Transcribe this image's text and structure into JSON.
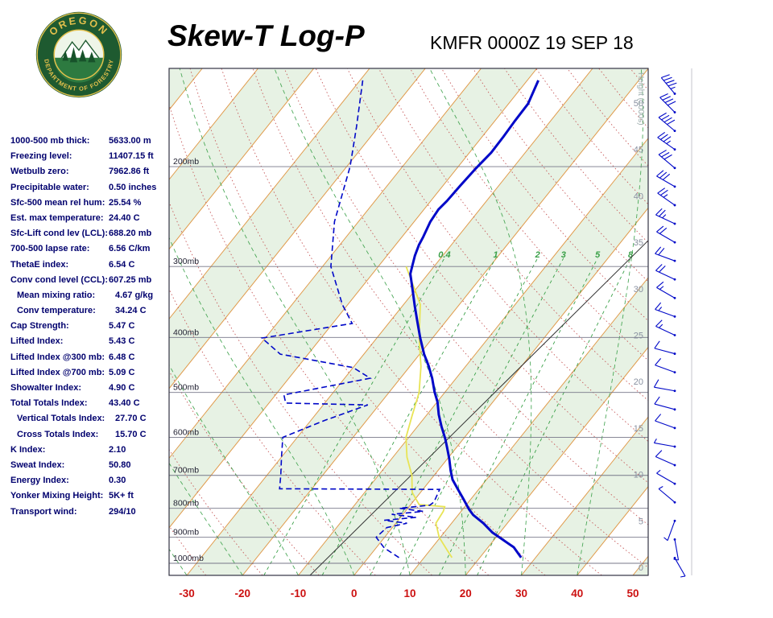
{
  "header": {
    "title": "Skew-T Log-P",
    "station": "KMFR 0000Z 19 SEP 18",
    "logo_top": "OREGON",
    "logo_bottom": "DEPARTMENT OF FORESTRY"
  },
  "indices": [
    {
      "label": "1000-500 mb thick:",
      "value": "5633.00 m",
      "indent": false
    },
    {
      "label": "Freezing level:",
      "value": "11407.15 ft",
      "indent": false
    },
    {
      "label": "Wetbulb zero:",
      "value": "7962.86 ft",
      "indent": false
    },
    {
      "label": "Precipitable water:",
      "value": "0.50 inches",
      "indent": false
    },
    {
      "label": "Sfc-500 mean rel hum:",
      "value": "25.54 %",
      "indent": false
    },
    {
      "label": "Est. max temperature:",
      "value": "24.40 C",
      "indent": false
    },
    {
      "label": "Sfc-Lift cond lev (LCL):",
      "value": "688.20 mb",
      "indent": false
    },
    {
      "label": "700-500 lapse rate:",
      "value": "6.56 C/km",
      "indent": false
    },
    {
      "label": "ThetaE index:",
      "value": "6.54 C",
      "indent": false
    },
    {
      "label": "Conv cond level (CCL):",
      "value": "607.25 mb",
      "indent": false
    },
    {
      "label": "Mean mixing ratio:",
      "value": "4.67 g/kg",
      "indent": true
    },
    {
      "label": "Conv temperature:",
      "value": "34.24 C",
      "indent": true
    },
    {
      "label": "Cap Strength:",
      "value": "5.47 C",
      "indent": false
    },
    {
      "label": "Lifted Index:",
      "value": "5.43 C",
      "indent": false
    },
    {
      "label": "Lifted Index @300 mb:",
      "value": "6.48 C",
      "indent": false
    },
    {
      "label": "Lifted Index @700 mb:",
      "value": "5.09 C",
      "indent": false
    },
    {
      "label": "Showalter Index:",
      "value": "4.90 C",
      "indent": false
    },
    {
      "label": "Total Totals Index:",
      "value": "43.40 C",
      "indent": false
    },
    {
      "label": "Vertical Totals Index:",
      "value": "27.70 C",
      "indent": true
    },
    {
      "label": "Cross Totals Index:",
      "value": "15.70 C",
      "indent": true
    },
    {
      "label": "K Index:",
      "value": "2.10",
      "indent": false
    },
    {
      "label": "Sweat Index:",
      "value": "50.80",
      "indent": false
    },
    {
      "label": "Energy Index:",
      "value": "0.30",
      "indent": false
    },
    {
      "label": "Yonker Mixing Height:",
      "value": "5K+ ft",
      "indent": false
    },
    {
      "label": "Transport wind:",
      "value": "294/10",
      "indent": false
    }
  ],
  "chart_data": {
    "type": "skewt-log-p",
    "title": "Skew-T Log-P",
    "station_time": "KMFR 0000Z 19 SEP 18",
    "pressure_levels": {
      "labels": [
        "200mb",
        "300mb",
        "400mb",
        "500mb",
        "600mb",
        "700mb",
        "800mb",
        "900mb",
        "1000mb"
      ],
      "values": [
        200,
        300,
        400,
        500,
        600,
        700,
        800,
        900,
        1000
      ],
      "scale": "log"
    },
    "temp_axis": {
      "ticks": [
        -30,
        -20,
        -10,
        0,
        10,
        20,
        30,
        40,
        50
      ],
      "unit": "C"
    },
    "height_axis": {
      "label": "Height (1000s)",
      "ticks": [
        0,
        5,
        10,
        15,
        20,
        25,
        30,
        35,
        40,
        45,
        50
      ],
      "unit": "1000s ft"
    },
    "mixing_ratio_lines": [
      0.4,
      1,
      2,
      3,
      5,
      8
    ],
    "temperature_profile": [
      [
        977,
        27.4
      ],
      [
        937,
        24.6
      ],
      [
        883,
        18.7
      ],
      [
        850,
        15.7
      ],
      [
        822,
        12.7
      ],
      [
        803,
        11.1
      ],
      [
        770,
        8.6
      ],
      [
        740,
        6.2
      ],
      [
        712,
        3.9
      ],
      [
        687,
        2.3
      ],
      [
        654,
        0.3
      ],
      [
        625,
        -1.7
      ],
      [
        603,
        -3.3
      ],
      [
        574,
        -5.7
      ],
      [
        547,
        -7.9
      ],
      [
        520,
        -9.9
      ],
      [
        499,
        -11.9
      ],
      [
        472,
        -14.3
      ],
      [
        449,
        -16.7
      ],
      [
        428,
        -19.2
      ],
      [
        401,
        -22.2
      ],
      [
        375,
        -25.1
      ],
      [
        352,
        -27.8
      ],
      [
        329,
        -30.6
      ],
      [
        309,
        -33.2
      ],
      [
        299,
        -34.0
      ],
      [
        287,
        -35.0
      ],
      [
        275,
        -35.8
      ],
      [
        266,
        -36.2
      ],
      [
        250,
        -37.1
      ],
      [
        238,
        -37.4
      ],
      [
        230,
        -37.1
      ],
      [
        216,
        -36.9
      ],
      [
        202,
        -36.6
      ],
      [
        189,
        -36.1
      ],
      [
        177,
        -36.2
      ],
      [
        166,
        -36.4
      ],
      [
        155,
        -36.5
      ],
      [
        141,
        -38.0
      ]
    ],
    "dewpoint_profile": [
      [
        977,
        5.5
      ],
      [
        940,
        1.5
      ],
      [
        900,
        -1.5
      ],
      [
        865,
        -1.0
      ],
      [
        850,
        2.0
      ],
      [
        840,
        -2.5
      ],
      [
        830,
        2.8
      ],
      [
        820,
        -2.0
      ],
      [
        810,
        3.2
      ],
      [
        800,
        -1.5
      ],
      [
        790,
        3.5
      ],
      [
        780,
        3.8
      ],
      [
        741,
        3.0
      ],
      [
        739,
        -25.8
      ],
      [
        700,
        -27.5
      ],
      [
        650,
        -30.0
      ],
      [
        600,
        -32.6
      ],
      [
        560,
        -27.5
      ],
      [
        526,
        -22.0
      ],
      [
        522,
        -37.0
      ],
      [
        505,
        -38.5
      ],
      [
        472,
        -25.4
      ],
      [
        452,
        -30.0
      ],
      [
        428,
        -45.0
      ],
      [
        401,
        -50.6
      ],
      [
        378,
        -36.5
      ],
      [
        350,
        -41.0
      ],
      [
        300,
        -48.5
      ],
      [
        250,
        -54.3
      ],
      [
        200,
        -59.4
      ],
      [
        170,
        -64.0
      ],
      [
        141,
        -69.5
      ]
    ],
    "wetbulb_profile": [
      [
        977,
        15.0
      ],
      [
        950,
        13.2
      ],
      [
        900,
        9.8
      ],
      [
        850,
        7.2
      ],
      [
        830,
        7.0
      ],
      [
        810,
        6.8
      ],
      [
        795,
        6.4
      ],
      [
        788,
        1.5
      ],
      [
        750,
        -1.5
      ],
      [
        700,
        -4.0
      ],
      [
        650,
        -7.5
      ],
      [
        600,
        -10.5
      ],
      [
        550,
        -12.5
      ],
      [
        500,
        -14.6
      ],
      [
        450,
        -18.0
      ],
      [
        400,
        -22.5
      ],
      [
        350,
        -27.0
      ],
      [
        300,
        -35.0
      ]
    ],
    "winds": [
      {
        "h": 51,
        "dir": 320,
        "spd": 45
      },
      {
        "h": 49,
        "dir": 315,
        "spd": 40
      },
      {
        "h": 47,
        "dir": 310,
        "spd": 40
      },
      {
        "h": 45,
        "dir": 305,
        "spd": 35
      },
      {
        "h": 43,
        "dir": 310,
        "spd": 30
      },
      {
        "h": 41,
        "dir": 300,
        "spd": 30
      },
      {
        "h": 39,
        "dir": 305,
        "spd": 25
      },
      {
        "h": 37,
        "dir": 295,
        "spd": 25
      },
      {
        "h": 35,
        "dir": 300,
        "spd": 20
      },
      {
        "h": 33,
        "dir": 290,
        "spd": 20
      },
      {
        "h": 31,
        "dir": 295,
        "spd": 20
      },
      {
        "h": 29,
        "dir": 300,
        "spd": 15
      },
      {
        "h": 27,
        "dir": 290,
        "spd": 15
      },
      {
        "h": 25,
        "dir": 295,
        "spd": 15
      },
      {
        "h": 23,
        "dir": 285,
        "spd": 10
      },
      {
        "h": 21,
        "dir": 290,
        "spd": 10
      },
      {
        "h": 19,
        "dir": 280,
        "spd": 10
      },
      {
        "h": 17,
        "dir": 285,
        "spd": 10
      },
      {
        "h": 15,
        "dir": 290,
        "spd": 10
      },
      {
        "h": 13,
        "dir": 280,
        "spd": 5
      },
      {
        "h": 11,
        "dir": 294,
        "spd": 10
      },
      {
        "h": 9,
        "dir": 300,
        "spd": 5
      },
      {
        "h": 7,
        "dir": 310,
        "spd": 5
      },
      {
        "h": 5,
        "dir": 200,
        "spd": 5
      },
      {
        "h": 3,
        "dir": 170,
        "spd": 5
      },
      {
        "h": 1,
        "dir": 150,
        "spd": 5
      }
    ],
    "colors": {
      "band": "#e7f2e4",
      "isotherm": "#e09a4a",
      "dry_adiabat": "#c75b5b",
      "moist": "#3aa048",
      "wetbulb": "#e8e455",
      "trace": "#0008c8",
      "wind": "#0008c8",
      "temp_ticks": "#cc1111",
      "pressure_line": "#777788"
    }
  }
}
